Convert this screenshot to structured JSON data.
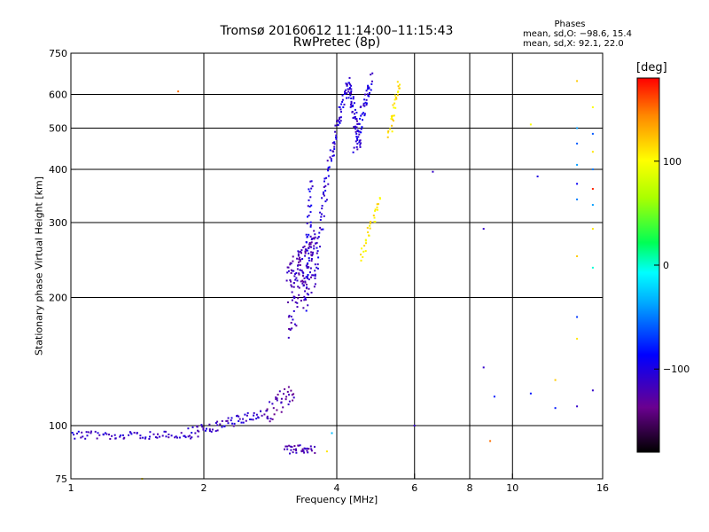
{
  "header": {
    "title_line1": "Tromsø 20160612 11:14:00–11:15:43",
    "title_line2": "RwPretec (8p)"
  },
  "phases": {
    "title": "Phases",
    "line_o": "mean, sd,O: −98.6, 15.4",
    "line_x": "mean, sd,X:  92.1, 22.0"
  },
  "colorbar": {
    "label": "[deg]",
    "ticks": [
      "100",
      "0",
      "−100"
    ],
    "tick_values": [
      100,
      0,
      -100
    ],
    "range": [
      -180,
      180
    ]
  },
  "chart_data": {
    "type": "scatter",
    "xlabel": "Frequency [MHz]",
    "ylabel": "Stationary phase Virtual Height [km]",
    "xscale": "log",
    "yscale": "log",
    "xlim": [
      1,
      16
    ],
    "ylim": [
      75,
      750
    ],
    "xticks": [
      1,
      2,
      4,
      6,
      8,
      10,
      16
    ],
    "xtick_labels": [
      "1",
      "2",
      "4",
      "6",
      "8",
      "10",
      "16"
    ],
    "yticks": [
      75,
      100,
      200,
      300,
      400,
      500,
      600,
      750
    ],
    "ytick_labels": [
      "75",
      "100",
      "200",
      "300",
      "400",
      "500",
      "600",
      "750"
    ],
    "grid": true,
    "traces": [
      {
        "f0": 1.0,
        "f1": 1.85,
        "h0": 95,
        "h1": 95,
        "phase": -110,
        "n": 70,
        "spread": 2
      },
      {
        "f0": 1.85,
        "f1": 2.8,
        "h0": 96,
        "h1": 107,
        "phase": -112,
        "n": 70,
        "spread": 3
      },
      {
        "f0": 2.8,
        "f1": 3.2,
        "h0": 107,
        "h1": 120,
        "phase": -125,
        "n": 35,
        "spread": 7
      },
      {
        "f0": 3.05,
        "f1": 3.55,
        "h0": 88,
        "h1": 88,
        "phase": -120,
        "n": 35,
        "spread": 2
      },
      {
        "f0": 3.1,
        "f1": 3.6,
        "h0": 200,
        "h1": 250,
        "phase": -118,
        "n": 160,
        "spread": 40
      },
      {
        "f0": 3.4,
        "f1": 3.5,
        "h0": 190,
        "h1": 370,
        "phase": -100,
        "n": 40,
        "spread": 10
      },
      {
        "f0": 3.6,
        "f1": 4.25,
        "h0": 245,
        "h1": 640,
        "phase": -105,
        "n": 90,
        "spread": 15
      },
      {
        "f0": 4.25,
        "f1": 4.5,
        "h0": 640,
        "h1": 450,
        "phase": -108,
        "n": 60,
        "spread": 25
      },
      {
        "f0": 4.4,
        "f1": 4.8,
        "h0": 450,
        "h1": 650,
        "phase": -102,
        "n": 50,
        "spread": 30
      },
      {
        "f0": 4.55,
        "f1": 5.0,
        "h0": 245,
        "h1": 340,
        "phase": 105,
        "n": 30,
        "spread": 8
      },
      {
        "f0": 5.25,
        "f1": 5.55,
        "h0": 480,
        "h1": 640,
        "phase": 110,
        "n": 30,
        "spread": 12
      }
    ],
    "scattered_points": [
      {
        "f": 1.75,
        "h": 610,
        "phase": 150
      },
      {
        "f": 6.6,
        "h": 395,
        "phase": -110
      },
      {
        "f": 6.0,
        "h": 100,
        "phase": -110
      },
      {
        "f": 8.6,
        "h": 290,
        "phase": -110
      },
      {
        "f": 8.6,
        "h": 137,
        "phase": -110
      },
      {
        "f": 8.9,
        "h": 92,
        "phase": 150
      },
      {
        "f": 9.1,
        "h": 117,
        "phase": -80
      },
      {
        "f": 11.0,
        "h": 510,
        "phase": 100
      },
      {
        "f": 11.4,
        "h": 385,
        "phase": -100
      },
      {
        "f": 11.0,
        "h": 119,
        "phase": -80
      },
      {
        "f": 12.5,
        "h": 128,
        "phase": 120
      },
      {
        "f": 12.5,
        "h": 110,
        "phase": -80
      },
      {
        "f": 14.0,
        "h": 645,
        "phase": 120
      },
      {
        "f": 14.0,
        "h": 500,
        "phase": -40
      },
      {
        "f": 14.0,
        "h": 460,
        "phase": -60
      },
      {
        "f": 14.0,
        "h": 410,
        "phase": -40
      },
      {
        "f": 14.0,
        "h": 370,
        "phase": -90
      },
      {
        "f": 14.0,
        "h": 340,
        "phase": -50
      },
      {
        "f": 14.0,
        "h": 250,
        "phase": 120
      },
      {
        "f": 14.0,
        "h": 180,
        "phase": -70
      },
      {
        "f": 14.0,
        "h": 160,
        "phase": 110
      },
      {
        "f": 14.0,
        "h": 111,
        "phase": -110
      },
      {
        "f": 15.2,
        "h": 560,
        "phase": 100
      },
      {
        "f": 15.2,
        "h": 485,
        "phase": -60
      },
      {
        "f": 15.2,
        "h": 440,
        "phase": 110
      },
      {
        "f": 15.2,
        "h": 400,
        "phase": -50
      },
      {
        "f": 15.2,
        "h": 360,
        "phase": 170
      },
      {
        "f": 15.2,
        "h": 330,
        "phase": -40
      },
      {
        "f": 15.2,
        "h": 290,
        "phase": 110
      },
      {
        "f": 15.2,
        "h": 235,
        "phase": 0
      },
      {
        "f": 15.2,
        "h": 121,
        "phase": -110
      },
      {
        "f": 1.45,
        "h": 75,
        "phase": 110
      },
      {
        "f": 3.8,
        "h": 87,
        "phase": 110
      },
      {
        "f": 3.9,
        "h": 96,
        "phase": -30
      }
    ]
  }
}
